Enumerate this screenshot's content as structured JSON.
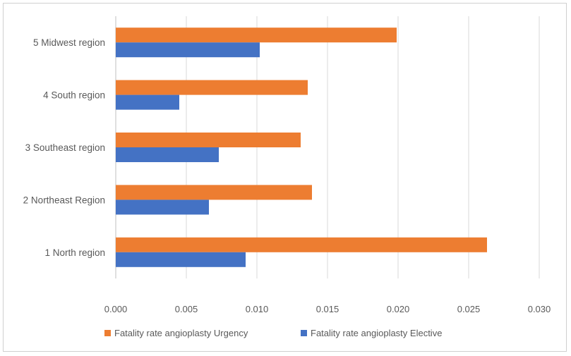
{
  "chart_data": {
    "type": "bar",
    "orientation": "horizontal",
    "categories": [
      "5 Midwest region",
      "4 South region",
      "3 Southeast region",
      "2 Northeast Region",
      "1 North region"
    ],
    "series": [
      {
        "name": "Fatality rate angioplasty Urgency",
        "color": "#ED7D31",
        "values": [
          0.0199,
          0.0136,
          0.0131,
          0.0139,
          0.0263
        ]
      },
      {
        "name": "Fatality rate angioplasty Elective",
        "color": "#4472C4",
        "values": [
          0.0102,
          0.0045,
          0.0073,
          0.0066,
          0.0092
        ]
      }
    ],
    "x_ticks": [
      "0.000",
      "0.005",
      "0.010",
      "0.015",
      "0.020",
      "0.025",
      "0.030"
    ],
    "xlim": [
      0,
      0.03
    ],
    "grid": true,
    "legend_position": "bottom",
    "title": "",
    "xlabel": "",
    "ylabel": ""
  }
}
